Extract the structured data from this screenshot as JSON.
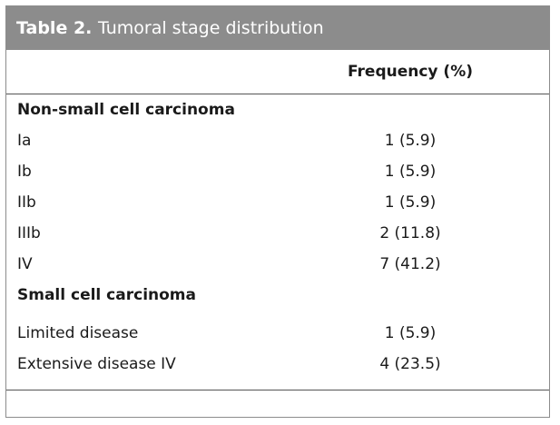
{
  "table": {
    "label": "Table 2.",
    "title": "Tumoral stage distribution",
    "column_header": "Frequency (%)",
    "sections": [
      {
        "name": "Non-small cell carcinoma",
        "rows": [
          {
            "stage": "Ia",
            "frequency": "1 (5.9)"
          },
          {
            "stage": "Ib",
            "frequency": "1 (5.9)"
          },
          {
            "stage": "IIb",
            "frequency": "1 (5.9)"
          },
          {
            "stage": "IIIb",
            "frequency": "2 (11.8)"
          },
          {
            "stage": "IV",
            "frequency": "7 (41.2)"
          }
        ]
      },
      {
        "name": "Small cell carcinoma",
        "rows": [
          {
            "stage": "Limited disease",
            "frequency": "1 (5.9)"
          },
          {
            "stage": "Extensive disease IV",
            "frequency": "4 (23.5)"
          }
        ]
      }
    ]
  }
}
